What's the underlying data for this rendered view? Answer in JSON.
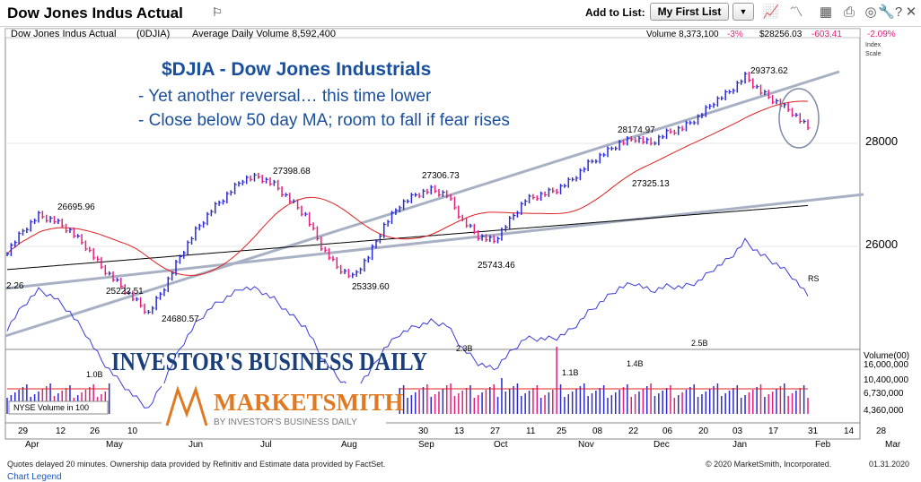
{
  "header": {
    "title": "Dow Jones Indus Actual",
    "add_to_list_label": "Add to List:",
    "list_selected": "My First List",
    "icons": [
      "chart-icon",
      "line-chart-icon",
      "calendar-icon",
      "print-icon",
      "lifebuoy-icon",
      "wrench-icon",
      "help-icon",
      "close-icon"
    ]
  },
  "info_bar": {
    "name": "Dow Jones Indus Actual",
    "symbol": "(0DJIA)",
    "avg_volume": "Average Daily Volume 8,592,400",
    "volume": "Volume 8,373,100",
    "volume_change": "-3%",
    "price": "$28256.03",
    "price_change": "-603.41",
    "price_pct": "-2.09%",
    "index_scale_1": "Index",
    "index_scale_2": "Scale"
  },
  "annotation": {
    "title": "$DJIA - Dow Jones Industrials",
    "line1": "- Yet another reversal… this time lower",
    "line2": "- Close below 50 day MA; room to fall if fear rises"
  },
  "logos": {
    "ibd": "INVESTOR'S BUSINESS DAILY",
    "marketsmith": "MARKETSMITH",
    "marketsmith_sub": "BY INVESTOR'S BUSINESS DAILY"
  },
  "colors": {
    "up_bar": "#2a2ad0",
    "down_bar": "#e0207a",
    "ma50": "#e02020",
    "ma200": "#000000",
    "rs_line": "#3a3ad8",
    "trend_line": "#a8b0c4",
    "annotation_text": "#1a4f9c"
  },
  "chart_data": {
    "type": "ohlc",
    "y_axis_labels": [
      "28000",
      "26000"
    ],
    "volume_axis_labels": [
      "Volume(00)",
      "16,000,000",
      "10,400,000",
      "6,730,000",
      "4,360,000"
    ],
    "volume_box_label": "NYSE Volume in 100",
    "price_annotations": [
      "29373.62",
      "28174.97",
      "27398.68",
      "27306.73",
      "26695.96",
      "27325.13",
      "25222.51",
      "25339.60",
      "25743.46",
      "24680.57",
      "2.26"
    ],
    "volume_annotations": [
      "2.3B",
      "2.5B",
      "1.0B",
      "1.1B",
      "1.4B"
    ],
    "rs_label": "RS",
    "x_ticks_days": [
      "29",
      "12",
      "26",
      "10",
      "30",
      "13",
      "27",
      "11",
      "25",
      "08",
      "22",
      "06",
      "20",
      "03",
      "17",
      "31",
      "14",
      "28"
    ],
    "x_ticks_months": [
      "Apr",
      "May",
      "Jun",
      "Jul",
      "Aug",
      "Sep",
      "Oct",
      "Nov",
      "Dec",
      "Jan",
      "Feb",
      "Mar"
    ],
    "price_series_approx": [
      25900,
      26300,
      26600,
      26500,
      26300,
      26000,
      25600,
      25300,
      25000,
      24700,
      25200,
      25800,
      26300,
      26700,
      27000,
      27300,
      27350,
      27200,
      26900,
      26600,
      26000,
      25600,
      25400,
      25800,
      26400,
      26800,
      27000,
      27100,
      27000,
      26500,
      26200,
      26100,
      26500,
      26900,
      27000,
      27100,
      27300,
      27600,
      27800,
      28000,
      28100,
      28000,
      28200,
      28300,
      28500,
      28800,
      29000,
      29300,
      29000,
      28800,
      28600,
      28300
    ]
  },
  "footer": {
    "disclaimer": "Quotes delayed 20 minutes. Ownership data provided by Refinitiv and Estimate data provided by FactSet.",
    "copyright": "© 2020 MarketSmith, Incorporated.",
    "date": "01.31.2020",
    "legend_link": "Chart Legend"
  }
}
